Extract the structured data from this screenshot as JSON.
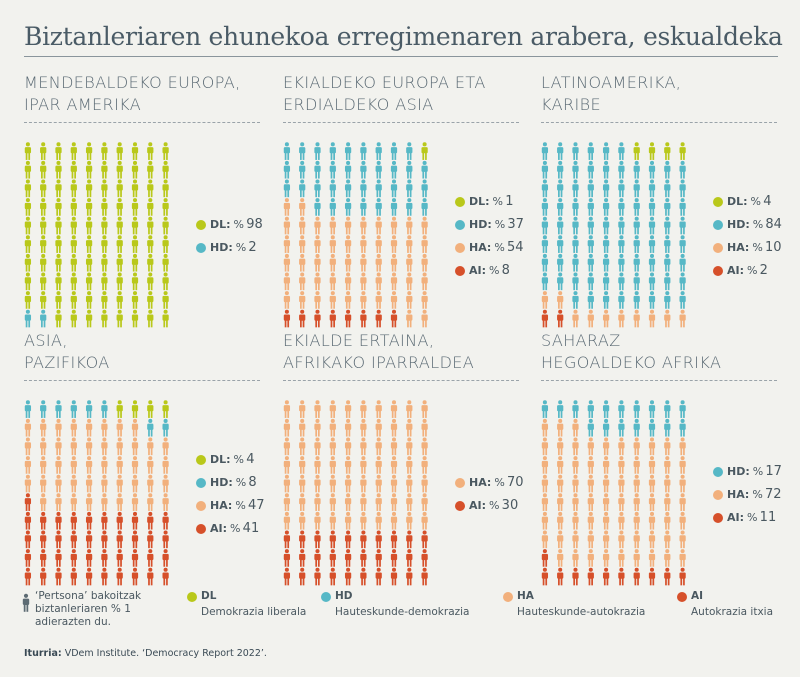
{
  "title": "Biztanleriaren ehunekoa erregimenaren arabera, eskualdeka",
  "colors": {
    "DL": "#b9c81a",
    "HD": "#56b8c6",
    "HA": "#f2b07c",
    "AI": "#d6502a",
    "icon": "#5d6b73"
  },
  "legend": {
    "note": "‘Pertsona’ bakoitzak biztanleriaren % 1 adierazten du.",
    "items": [
      {
        "code": "DL",
        "label": "Demokrazia liberala"
      },
      {
        "code": "HD",
        "label": "Hauteskunde-demokrazia"
      },
      {
        "code": "HA",
        "label": "Hauteskunde-autokrazia"
      },
      {
        "code": "AI",
        "label": "Autokrazia itxia"
      }
    ]
  },
  "source": {
    "label": "Iturria:",
    "text": " VDem Institute. ‘Democracy Report 2022’."
  },
  "chart_data": [
    {
      "type": "pictogram",
      "region_lines": [
        "MENDEBALDEKO EUROPA,",
        "IPAR AMERIKA"
      ],
      "values": [
        {
          "code": "DL",
          "value": 98
        },
        {
          "code": "HD",
          "value": 2
        }
      ]
    },
    {
      "type": "pictogram",
      "region_lines": [
        "EKIALDEKO EUROPA ETA",
        "ERDIALDEKO ASIA"
      ],
      "values": [
        {
          "code": "DL",
          "value": 1
        },
        {
          "code": "HD",
          "value": 37
        },
        {
          "code": "HA",
          "value": 54
        },
        {
          "code": "AI",
          "value": 8
        }
      ]
    },
    {
      "type": "pictogram",
      "region_lines": [
        "LATINOAMERIKA,",
        "KARIBE"
      ],
      "values": [
        {
          "code": "DL",
          "value": 4
        },
        {
          "code": "HD",
          "value": 84
        },
        {
          "code": "HA",
          "value": 10
        },
        {
          "code": "AI",
          "value": 2
        }
      ]
    },
    {
      "type": "pictogram",
      "region_lines": [
        "ASIA,",
        "PAZIFIKOA"
      ],
      "values": [
        {
          "code": "DL",
          "value": 4
        },
        {
          "code": "HD",
          "value": 8
        },
        {
          "code": "HA",
          "value": 47
        },
        {
          "code": "AI",
          "value": 41
        }
      ]
    },
    {
      "type": "pictogram",
      "region_lines": [
        "EKIALDE ERTAINA,",
        "AFRIKAKO IPARRALDEA"
      ],
      "values": [
        {
          "code": "HA",
          "value": 70
        },
        {
          "code": "AI",
          "value": 30
        }
      ]
    },
    {
      "type": "pictogram",
      "region_lines": [
        "SAHARAZ",
        "HEGOALDEKO AFRIKA"
      ],
      "values": [
        {
          "code": "HD",
          "value": 17
        },
        {
          "code": "HA",
          "value": 72
        },
        {
          "code": "AI",
          "value": 11
        }
      ]
    }
  ]
}
